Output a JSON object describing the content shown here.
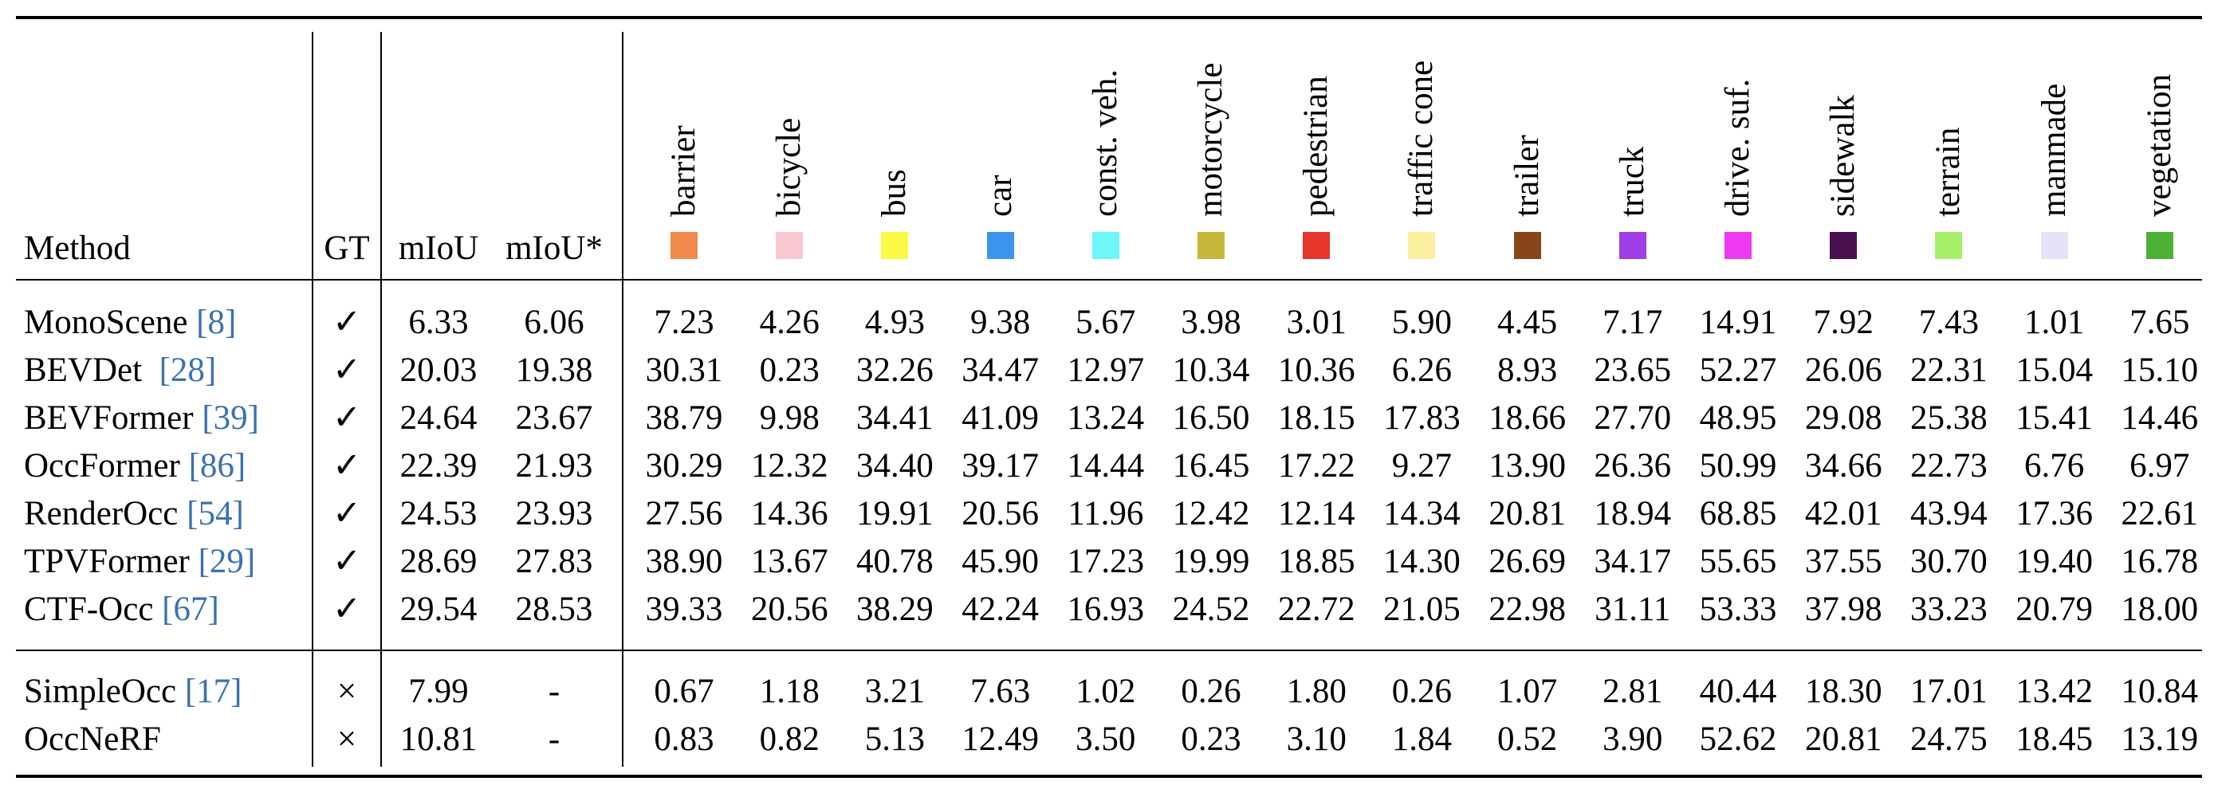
{
  "header": {
    "method": "Method",
    "gt": "GT",
    "miou": "mIoU",
    "miou_star": "mIoU*"
  },
  "classes": [
    {
      "name": "barrier",
      "color": "#f08a4b"
    },
    {
      "name": "bicycle",
      "color": "#f9c7cf"
    },
    {
      "name": "bus",
      "color": "#fbfb45"
    },
    {
      "name": "car",
      "color": "#3c94ec"
    },
    {
      "name": "const. veh.",
      "color": "#6ef6fa"
    },
    {
      "name": "motorcycle",
      "color": "#c8b63a"
    },
    {
      "name": "pedestrian",
      "color": "#e6352a"
    },
    {
      "name": "traffic cone",
      "color": "#fbf0a0"
    },
    {
      "name": "trailer",
      "color": "#864619"
    },
    {
      "name": "truck",
      "color": "#9f3fe6"
    },
    {
      "name": "drive. suf.",
      "color": "#ee39f3"
    },
    {
      "name": "sidewalk",
      "color": "#4a1150"
    },
    {
      "name": "terrain",
      "color": "#a8ef6a"
    },
    {
      "name": "manmade",
      "color": "#e4e4f6"
    },
    {
      "name": "vegetation",
      "color": "#4caf36"
    }
  ],
  "rows": [
    {
      "method": "MonoScene ",
      "ref": "[8]",
      "gt": "✓",
      "miou": "6.33",
      "miou_star": "6.06",
      "values": [
        "7.23",
        "4.26",
        "4.93",
        "9.38",
        "5.67",
        "3.98",
        "3.01",
        "5.90",
        "4.45",
        "7.17",
        "14.91",
        "7.92",
        "7.43",
        "1.01",
        "7.65"
      ]
    },
    {
      "method": "BEVDet  ",
      "ref": "[28]",
      "gt": "✓",
      "miou": "20.03",
      "miou_star": "19.38",
      "values": [
        "30.31",
        "0.23",
        "32.26",
        "34.47",
        "12.97",
        "10.34",
        "10.36",
        "6.26",
        "8.93",
        "23.65",
        "52.27",
        "26.06",
        "22.31",
        "15.04",
        "15.10"
      ]
    },
    {
      "method": "BEVFormer ",
      "ref": "[39]",
      "gt": "✓",
      "miou": "24.64",
      "miou_star": "23.67",
      "values": [
        "38.79",
        "9.98",
        "34.41",
        "41.09",
        "13.24",
        "16.50",
        "18.15",
        "17.83",
        "18.66",
        "27.70",
        "48.95",
        "29.08",
        "25.38",
        "15.41",
        "14.46"
      ]
    },
    {
      "method": "OccFormer ",
      "ref": "[86]",
      "gt": "✓",
      "miou": "22.39",
      "miou_star": "21.93",
      "values": [
        "30.29",
        "12.32",
        "34.40",
        "39.17",
        "14.44",
        "16.45",
        "17.22",
        "9.27",
        "13.90",
        "26.36",
        "50.99",
        "34.66",
        "22.73",
        "6.76",
        "6.97"
      ]
    },
    {
      "method": "RenderOcc ",
      "ref": "[54]",
      "gt": "✓",
      "miou": "24.53",
      "miou_star": "23.93",
      "values": [
        "27.56",
        "14.36",
        "19.91",
        "20.56",
        "11.96",
        "12.42",
        "12.14",
        "14.34",
        "20.81",
        "18.94",
        "68.85",
        "42.01",
        "43.94",
        "17.36",
        "22.61"
      ]
    },
    {
      "method": "TPVFormer ",
      "ref": "[29]",
      "gt": "✓",
      "miou": "28.69",
      "miou_star": "27.83",
      "values": [
        "38.90",
        "13.67",
        "40.78",
        "45.90",
        "17.23",
        "19.99",
        "18.85",
        "14.30",
        "26.69",
        "34.17",
        "55.65",
        "37.55",
        "30.70",
        "19.40",
        "16.78"
      ]
    },
    {
      "method": "CTF-Occ ",
      "ref": "[67]",
      "gt": "✓",
      "miou": "29.54",
      "miou_star": "28.53",
      "values": [
        "39.33",
        "20.56",
        "38.29",
        "42.24",
        "16.93",
        "24.52",
        "22.72",
        "21.05",
        "22.98",
        "31.11",
        "53.33",
        "37.98",
        "33.23",
        "20.79",
        "18.00"
      ]
    },
    {
      "method": "SimpleOcc ",
      "ref": "[17]",
      "gt": "×",
      "miou": "7.99",
      "miou_star": "-",
      "values": [
        "0.67",
        "1.18",
        "3.21",
        "7.63",
        "1.02",
        "0.26",
        "1.80",
        "0.26",
        "1.07",
        "2.81",
        "40.44",
        "18.30",
        "17.01",
        "13.42",
        "10.84"
      ]
    },
    {
      "method": "OccNeRF",
      "ref": "",
      "gt": "×",
      "miou": "10.81",
      "miou_star": "-",
      "values": [
        "0.83",
        "0.82",
        "5.13",
        "12.49",
        "3.50",
        "0.23",
        "3.10",
        "1.84",
        "0.52",
        "3.90",
        "52.62",
        "20.81",
        "24.75",
        "18.45",
        "13.19"
      ]
    }
  ]
}
